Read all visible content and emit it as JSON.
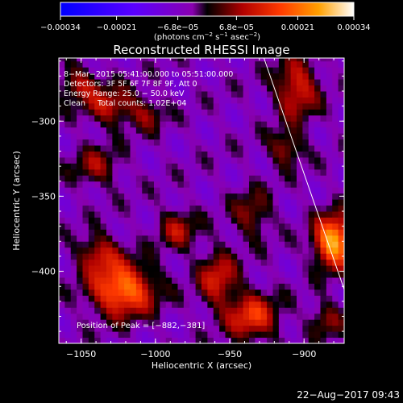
{
  "chart_data": {
    "type": "heatmap",
    "title": "Reconstructed RHESSI Image",
    "xlabel": "Heliocentric X (arcsec)",
    "ylabel": "Heliocentric Y (arcsec)",
    "xlim": [
      -1065,
      -873
    ],
    "ylim": [
      -448,
      -258
    ],
    "x_ticks": [
      {
        "value": -1050,
        "label": "−1050"
      },
      {
        "value": -1000,
        "label": "−1000"
      },
      {
        "value": -950,
        "label": "−950"
      },
      {
        "value": -900,
        "label": "−900"
      }
    ],
    "y_ticks": [
      {
        "value": -300,
        "label": "−300"
      },
      {
        "value": -350,
        "label": "−350"
      },
      {
        "value": -400,
        "label": "−400"
      }
    ],
    "colorbar": {
      "min": -0.00034,
      "max": 0.00034,
      "ticks": [
        {
          "value": -0.00034,
          "label": "−0.00034"
        },
        {
          "value": -0.00021,
          "label": "−0.00021"
        },
        {
          "value": -6.8e-05,
          "label": "−6.8e−05"
        },
        {
          "value": 6.8e-05,
          "label": "6.8e−05"
        },
        {
          "value": 0.00021,
          "label": "0.00021"
        },
        {
          "value": 0.00034,
          "label": "0.00034"
        }
      ],
      "unit_parts": [
        "(photons cm",
        "−2",
        " s",
        "−1",
        " asec",
        "−2",
        ")"
      ]
    },
    "annotations": [
      "8−Mar−2015 05:41:00.000 to 05:51:00.000",
      "Detectors: 3F 5F 6F 7F 8F 9F, Att 0",
      "Energy Range: 25.0 − 50.0 keV",
      "Clean     Total counts: 1.02E+04"
    ],
    "peak_label": "Position of Peak = [−882,−381]",
    "peak": {
      "x": -882,
      "y": -381
    },
    "limb_line": [
      {
        "x": -927,
        "y": -258
      },
      {
        "x": -873,
        "y": -412
      }
    ],
    "sources": [
      {
        "x": -880,
        "y": -380,
        "sx": 9,
        "sy": 12,
        "amp": 1.0
      },
      {
        "x": -1022,
        "y": -412,
        "sx": 15,
        "sy": 12,
        "amp": 0.85
      },
      {
        "x": -1038,
        "y": -388,
        "sx": 10,
        "sy": 9,
        "amp": 0.45
      },
      {
        "x": -935,
        "y": -430,
        "sx": 12,
        "sy": 11,
        "amp": 0.6
      },
      {
        "x": -958,
        "y": -405,
        "sx": 9,
        "sy": 13,
        "amp": 0.5
      },
      {
        "x": -905,
        "y": -278,
        "sx": 10,
        "sy": 14,
        "amp": 0.55
      },
      {
        "x": -912,
        "y": -318,
        "sx": 8,
        "sy": 8,
        "amp": 0.4
      },
      {
        "x": -1030,
        "y": -290,
        "sx": 12,
        "sy": 9,
        "amp": 0.45
      },
      {
        "x": -1052,
        "y": -275,
        "sx": 10,
        "sy": 8,
        "amp": 0.4
      },
      {
        "x": -1040,
        "y": -330,
        "sx": 11,
        "sy": 9,
        "amp": 0.35
      },
      {
        "x": -985,
        "y": -372,
        "sx": 9,
        "sy": 9,
        "amp": 0.4
      },
      {
        "x": -935,
        "y": -362,
        "sx": 9,
        "sy": 11,
        "amp": 0.35
      },
      {
        "x": -1005,
        "y": -295,
        "sx": 8,
        "sy": 8,
        "amp": 0.3
      },
      {
        "x": -885,
        "y": -432,
        "sx": 8,
        "sy": 8,
        "amp": 0.35
      }
    ],
    "grid": false
  },
  "footer": {
    "timestamp": "22−Aug−2017 09:43"
  }
}
